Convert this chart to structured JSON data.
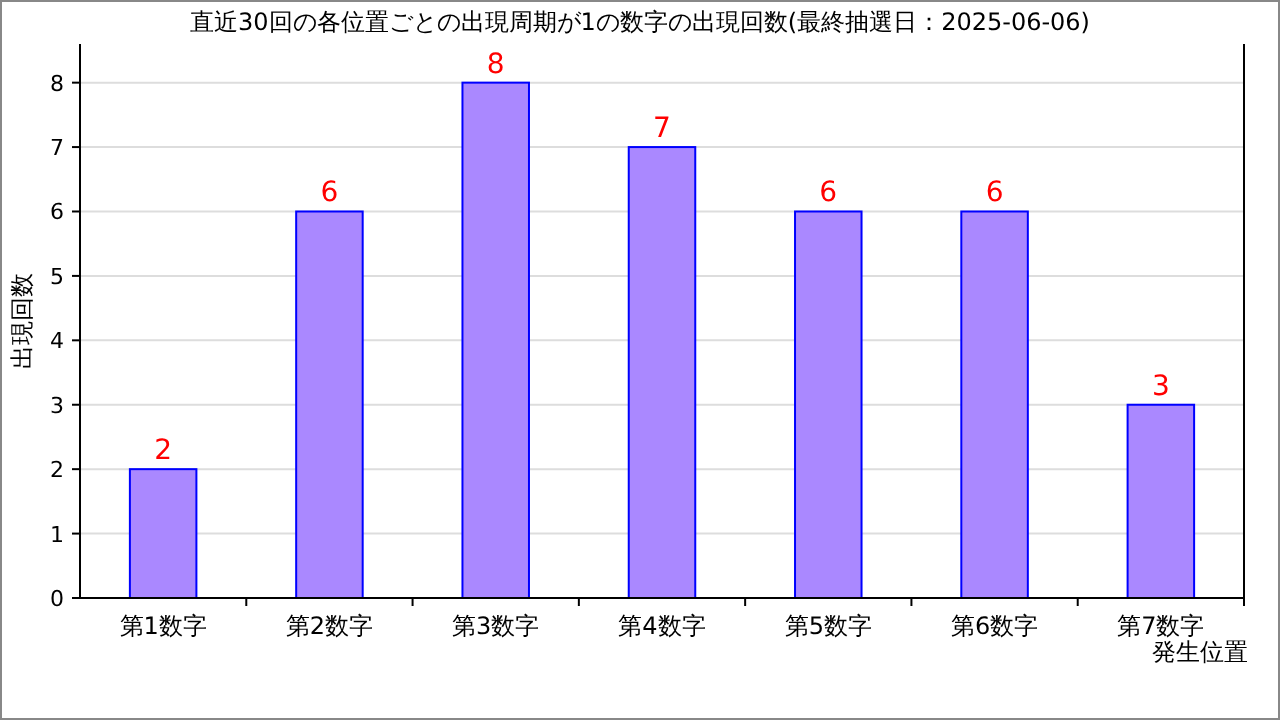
{
  "chart_data": {
    "type": "bar",
    "title": "直近30回の各位置ごとの出現周期が1の数字の出現回数(最終抽選日：2025-06-06)",
    "xlabel": "発生位置",
    "ylabel": "出現回数",
    "categories": [
      "第1数字",
      "第2数字",
      "第3数字",
      "第4数字",
      "第5数字",
      "第6数字",
      "第7数字"
    ],
    "values": [
      2,
      6,
      8,
      7,
      6,
      6,
      3
    ],
    "color": "#aa88ff",
    "ylim": [
      0,
      8.6
    ],
    "yticks": [
      0,
      1,
      2,
      3,
      4,
      5,
      6,
      7,
      8
    ],
    "grid": "y",
    "data_labels": true
  }
}
